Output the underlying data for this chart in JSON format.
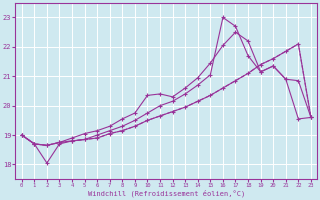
{
  "xlabel": "Windchill (Refroidissement éolien,°C)",
  "background_color": "#cfe9f0",
  "grid_color": "#ffffff",
  "line_color": "#993399",
  "xlim": [
    -0.5,
    23.5
  ],
  "ylim": [
    17.5,
    23.5
  ],
  "yticks": [
    18,
    19,
    20,
    21,
    22,
    23
  ],
  "xticks": [
    0,
    1,
    2,
    3,
    4,
    5,
    6,
    7,
    8,
    9,
    10,
    11,
    12,
    13,
    14,
    15,
    16,
    17,
    18,
    19,
    20,
    21,
    22,
    23
  ],
  "line1_x": [
    0,
    1,
    2,
    3,
    4,
    5,
    6,
    7,
    8,
    9,
    10,
    11,
    12,
    13,
    14,
    15,
    16,
    17,
    18,
    19,
    20,
    21,
    22,
    23
  ],
  "line1_y": [
    19.0,
    18.7,
    18.65,
    18.75,
    18.8,
    18.85,
    18.9,
    19.05,
    19.15,
    19.3,
    19.5,
    19.65,
    19.8,
    19.95,
    20.15,
    20.35,
    20.6,
    20.85,
    21.1,
    21.4,
    21.6,
    21.85,
    22.1,
    19.6
  ],
  "line2_x": [
    0,
    1,
    2,
    3,
    4,
    5,
    6,
    7,
    8,
    9,
    10,
    11,
    12,
    13,
    14,
    15,
    16,
    17,
    18,
    19,
    20,
    21,
    22,
    23
  ],
  "line2_y": [
    19.0,
    18.7,
    18.65,
    18.75,
    18.9,
    19.05,
    19.15,
    19.3,
    19.55,
    19.75,
    20.35,
    20.4,
    20.3,
    20.6,
    20.95,
    21.45,
    22.05,
    22.5,
    22.2,
    21.15,
    21.35,
    20.9,
    20.85,
    19.6
  ],
  "line3_x": [
    0,
    1,
    2,
    3,
    4,
    5,
    6,
    7,
    8,
    9,
    10,
    11,
    12,
    13,
    14,
    15,
    16,
    17,
    18,
    19,
    20,
    21,
    22,
    23
  ],
  "line3_y": [
    19.0,
    18.7,
    18.05,
    18.7,
    18.8,
    18.85,
    19.0,
    19.15,
    19.3,
    19.5,
    19.75,
    20.0,
    20.15,
    20.4,
    20.7,
    21.05,
    23.0,
    22.7,
    21.7,
    21.15,
    21.35,
    20.9,
    19.55,
    19.6
  ],
  "line4_x": [
    0,
    1,
    2,
    3,
    4,
    5,
    6,
    7,
    8,
    9,
    10,
    11,
    12,
    13,
    14,
    15,
    16,
    17,
    18,
    19,
    20,
    21,
    22,
    23
  ],
  "line4_y": [
    19.0,
    18.7,
    18.65,
    18.75,
    18.8,
    18.85,
    18.9,
    19.05,
    19.15,
    19.3,
    19.5,
    19.65,
    19.8,
    19.95,
    20.15,
    20.35,
    20.6,
    20.85,
    21.1,
    21.4,
    21.6,
    21.85,
    22.1,
    19.6
  ]
}
